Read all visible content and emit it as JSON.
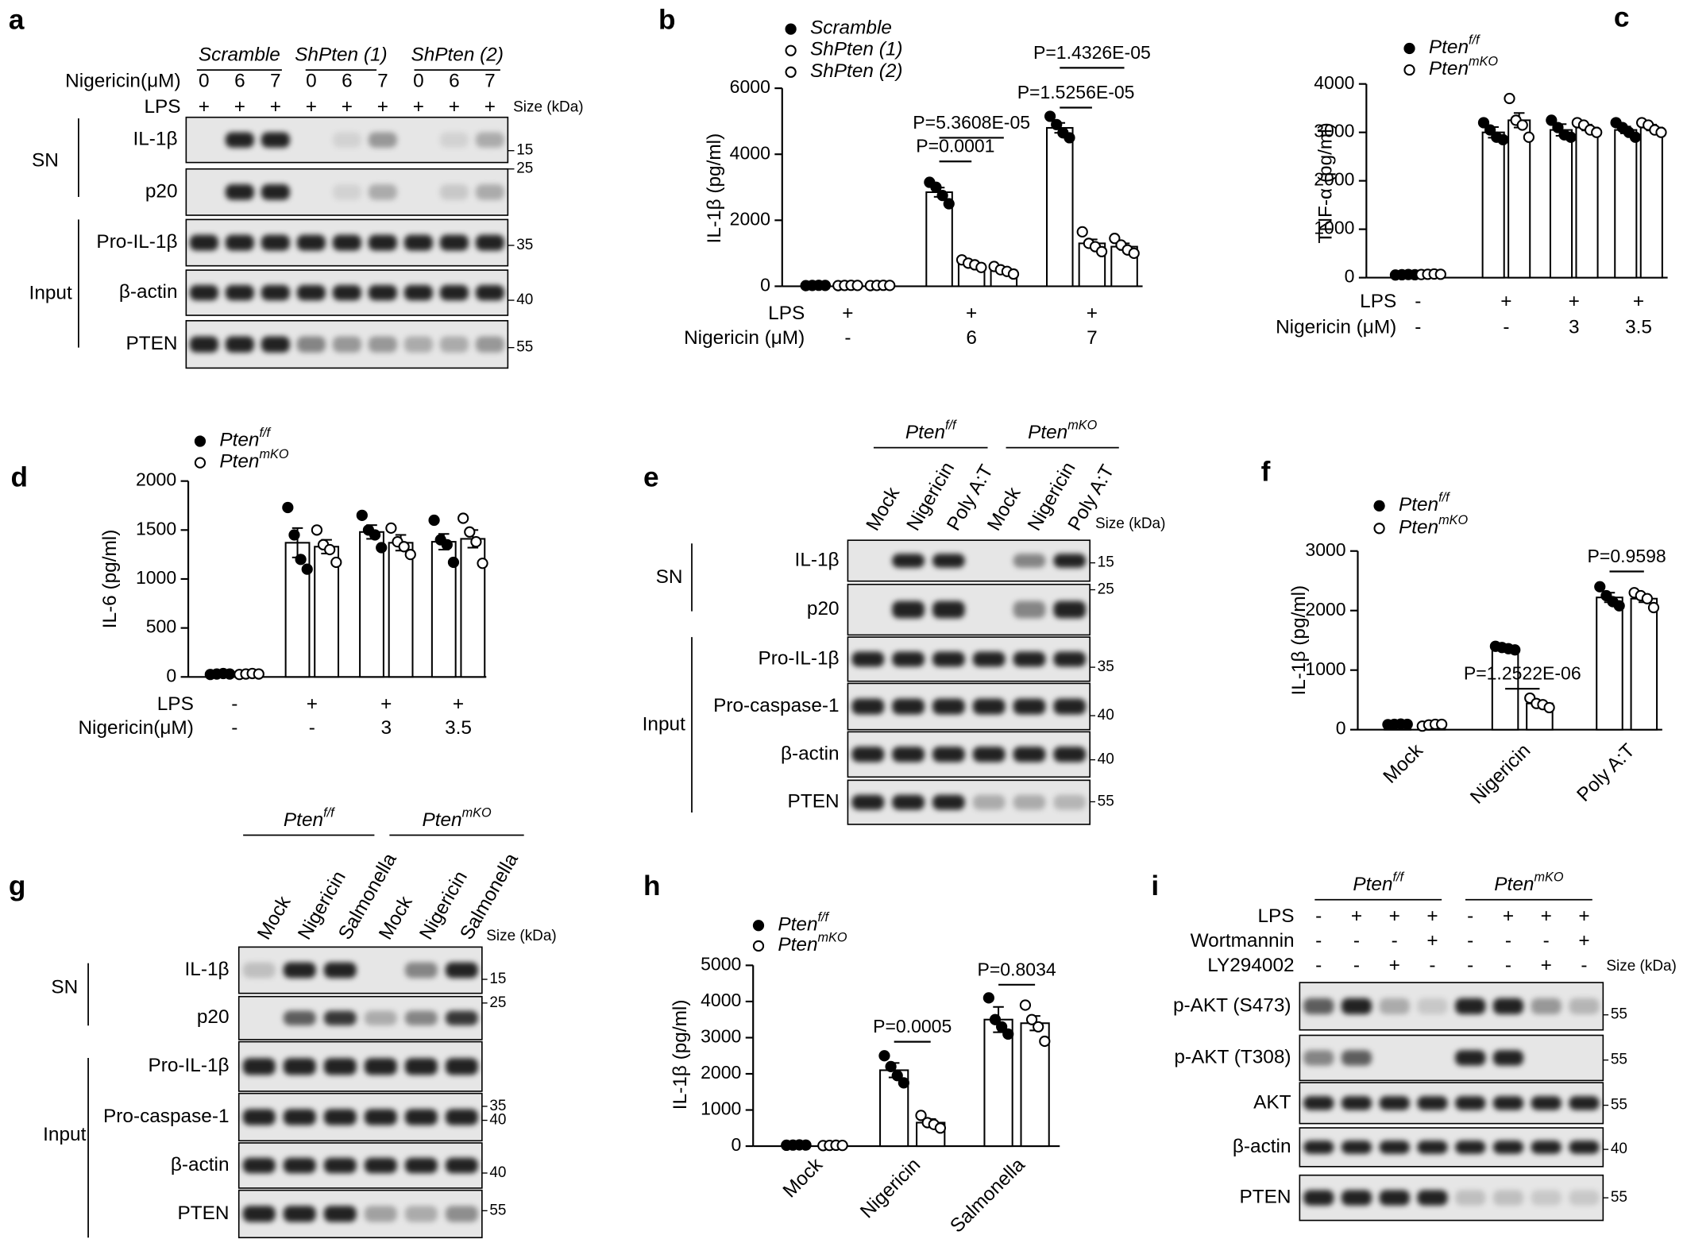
{
  "chart_data": [
    {
      "letter": "b",
      "type": "bar",
      "y_label": "IL-1β (pg/ml)",
      "conditions": [
        {
          "label": "LPS",
          "values": [
            "+",
            "+",
            "+"
          ]
        },
        {
          "label": "Nigericin (μM)",
          "values": [
            "-",
            6,
            7
          ]
        }
      ],
      "ylim": [
        0,
        6000
      ],
      "yticks": [
        0,
        2000,
        4000,
        6000
      ],
      "series": [
        {
          "name": "Scramble",
          "marker": "filled",
          "color": "#000000",
          "values": [
            25,
            2850,
            4800
          ],
          "errors": [
            3,
            140,
            150
          ],
          "points": [
            [
              20,
              25,
              30,
              25
            ],
            [
              3150,
              3000,
              2750,
              2500
            ],
            [
              5150,
              4900,
              4650,
              4500
            ]
          ]
        },
        {
          "name": "ShPten (1)",
          "marker": "open",
          "color": "#000000",
          "values": [
            25,
            680,
            1300
          ],
          "errors": [
            3,
            50,
            120
          ],
          "points": [
            [
              20,
              25,
              30,
              25
            ],
            [
              800,
              700,
              650,
              570
            ],
            [
              1650,
              1300,
              1200,
              1050
            ]
          ]
        },
        {
          "name": "ShPten (2)",
          "marker": "open",
          "color": "#000000",
          "values": [
            25,
            480,
            1200
          ],
          "errors": [
            3,
            50,
            100
          ],
          "points": [
            [
              20,
              25,
              30,
              25
            ],
            [
              600,
              500,
              450,
              370
            ],
            [
              1450,
              1250,
              1100,
              1000
            ]
          ]
        }
      ],
      "annotations": [
        {
          "text": "P=0.0001",
          "category": 1,
          "series": [
            0,
            1
          ]
        },
        {
          "text": "P=5.3608E-05",
          "category": 1,
          "series": [
            0,
            2
          ]
        },
        {
          "text": "P=1.5256E-05",
          "category": 2,
          "series": [
            0,
            1
          ]
        },
        {
          "text": "P=1.4326E-05",
          "category": 2,
          "series": [
            0,
            2
          ]
        }
      ]
    },
    {
      "letter": "c",
      "type": "bar",
      "y_label": "TNF-α (pg/ml)",
      "conditions": [
        {
          "label": "LPS",
          "values": [
            "-",
            "+",
            "+",
            "+"
          ]
        },
        {
          "label": "Nigericin (μM)",
          "values": [
            "-",
            "-",
            3,
            3.5
          ]
        }
      ],
      "ylim": [
        0,
        4000
      ],
      "yticks": [
        0,
        1000,
        2000,
        3000,
        4000
      ],
      "series": [
        {
          "name": "Pten",
          "name_superscript": "f/f",
          "marker": "filled",
          "color": "#000000",
          "values": [
            60,
            3000,
            3050,
            3050
          ],
          "errors": [
            5,
            110,
            120,
            70
          ],
          "points": [
            [
              55,
              60,
              65,
              60
            ],
            [
              3200,
              3050,
              2900,
              2850
            ],
            [
              3250,
              3100,
              2950,
              2900
            ],
            [
              3200,
              3100,
              3000,
              2900
            ]
          ]
        },
        {
          "name": "Pten",
          "name_superscript": "mKO",
          "marker": "open",
          "color": "#000000",
          "values": [
            70,
            3250,
            3100,
            3100
          ],
          "errors": [
            5,
            150,
            60,
            60
          ],
          "points": [
            [
              65,
              70,
              75,
              70
            ],
            [
              3700,
              3250,
              3150,
              2900
            ],
            [
              3200,
              3150,
              3050,
              3000
            ],
            [
              3200,
              3150,
              3050,
              3000
            ]
          ]
        }
      ]
    },
    {
      "letter": "d",
      "type": "bar",
      "y_label": "IL-6 (pg/ml)",
      "conditions": [
        {
          "label": "LPS",
          "values": [
            "-",
            "+",
            "+",
            "+"
          ]
        },
        {
          "label": "Nigericin(μM)",
          "values": [
            "-",
            "-",
            3,
            3.5
          ]
        }
      ],
      "ylim": [
        0,
        2000
      ],
      "yticks": [
        0,
        500,
        1000,
        1500,
        2000
      ],
      "series": [
        {
          "name": "Pten",
          "name_superscript": "f/f",
          "marker": "filled",
          "color": "#000000",
          "values": [
            30,
            1370,
            1480,
            1380
          ],
          "errors": [
            5,
            150,
            70,
            80
          ],
          "points": [
            [
              25,
              30,
              35,
              30
            ],
            [
              1730,
              1450,
              1200,
              1100
            ],
            [
              1650,
              1500,
              1450,
              1320
            ],
            [
              1600,
              1400,
              1350,
              1170
            ]
          ]
        },
        {
          "name": "Pten",
          "name_superscript": "mKO",
          "marker": "open",
          "color": "#000000",
          "values": [
            30,
            1330,
            1370,
            1410
          ],
          "errors": [
            5,
            70,
            80,
            90
          ],
          "points": [
            [
              25,
              30,
              35,
              30
            ],
            [
              1500,
              1350,
              1300,
              1170
            ],
            [
              1520,
              1380,
              1330,
              1250
            ],
            [
              1620,
              1480,
              1380,
              1160
            ]
          ]
        }
      ]
    },
    {
      "letter": "f",
      "type": "bar",
      "y_label": "IL-1β (pg/ml)",
      "categories": [
        "Mock",
        "Nigericin",
        "Poly A:T"
      ],
      "ylim": [
        0,
        3000
      ],
      "yticks": [
        0,
        1000,
        2000,
        3000
      ],
      "series": [
        {
          "name": "Pten",
          "name_superscript": "f/f",
          "marker": "filled",
          "color": "#000000",
          "values": [
            90,
            1370,
            2220
          ],
          "errors": [
            5,
            20,
            80
          ],
          "points": [
            [
              85,
              90,
              95,
              90
            ],
            [
              1400,
              1380,
              1360,
              1340
            ],
            [
              2400,
              2250,
              2150,
              2080
            ]
          ]
        },
        {
          "name": "Pten",
          "name_superscript": "mKO",
          "marker": "open",
          "color": "#000000",
          "values": [
            80,
            440,
            2200
          ],
          "errors": [
            10,
            40,
            60
          ],
          "points": [
            [
              60,
              80,
              90,
              90
            ],
            [
              530,
              440,
              420,
              370
            ],
            [
              2300,
              2250,
              2200,
              2050
            ]
          ]
        }
      ],
      "annotations": [
        {
          "text": "P=1.2522E-06",
          "category": 1,
          "series": [
            0,
            1
          ]
        },
        {
          "text": "P=0.9598",
          "category": 2,
          "series": [
            0,
            1
          ]
        }
      ]
    },
    {
      "letter": "h",
      "type": "bar",
      "y_label": "IL-1β (pg/ml)",
      "categories": [
        "Mock",
        "Nigericin",
        "Salmonella"
      ],
      "ylim": [
        0,
        5000
      ],
      "yticks": [
        0,
        1000,
        2000,
        3000,
        4000,
        5000
      ],
      "series": [
        {
          "name": "Pten",
          "name_superscript": "f/f",
          "marker": "filled",
          "color": "#000000",
          "values": [
            30,
            2100,
            3500
          ],
          "errors": [
            5,
            200,
            350
          ],
          "points": [
            [
              25,
              30,
              35,
              30
            ],
            [
              2500,
              2200,
              1950,
              1750
            ],
            [
              4100,
              3500,
              3300,
              3100
            ]
          ]
        },
        {
          "name": "Pten",
          "name_superscript": "mKO",
          "marker": "open",
          "color": "#000000",
          "values": [
            20,
            650,
            3400
          ],
          "errors": [
            5,
            100,
            200
          ],
          "points": [
            [
              15,
              20,
              25,
              20
            ],
            [
              850,
              650,
              600,
              500
            ],
            [
              3900,
              3500,
              3300,
              2900
            ]
          ]
        }
      ],
      "annotations": [
        {
          "text": "P=0.0005",
          "category": 1,
          "series": [
            0,
            1
          ]
        },
        {
          "text": "P=0.8034",
          "category": 2,
          "series": [
            0,
            1
          ]
        }
      ]
    }
  ],
  "blots": [
    {
      "letter": "a",
      "groups": [
        {
          "name": "Scramble"
        },
        {
          "name": "ShPten (1)"
        },
        {
          "name": "ShPten (2)"
        }
      ],
      "conditions": [
        {
          "label": "Nigericin(μM)",
          "values": [
            0,
            6,
            7,
            0,
            6,
            7,
            0,
            6,
            7
          ]
        },
        {
          "label": "LPS",
          "values": [
            "+",
            "+",
            "+",
            "+",
            "+",
            "+",
            "+",
            "+",
            "+"
          ]
        }
      ],
      "size_label": "Size (kDa)",
      "sections": [
        {
          "label": "SN"
        },
        {
          "label": "Input"
        }
      ],
      "rows": [
        {
          "label": "IL-1β",
          "size": 15
        },
        {
          "label": "p20",
          "size": 25
        },
        {
          "label": "Pro-IL-1β",
          "size": 35
        },
        {
          "label": "β-actin",
          "size": 40
        },
        {
          "label": "PTEN",
          "size": 55
        }
      ]
    },
    {
      "letter": "e",
      "groups": [
        {
          "name": "Pten",
          "superscript": "f/f"
        },
        {
          "name": "Pten",
          "superscript": "mKO"
        }
      ],
      "lane_labels": [
        "Mock",
        "Nigericin",
        "Poly A:T",
        "Mock",
        "Nigericin",
        "Poly A:T"
      ],
      "size_label": "Size (kDa)",
      "sections": [
        {
          "label": "SN"
        },
        {
          "label": "Input"
        }
      ],
      "rows": [
        {
          "label": "IL-1β",
          "size": 15
        },
        {
          "label": "p20",
          "size": 25
        },
        {
          "label": "Pro-IL-1β",
          "size": 35
        },
        {
          "label": "Pro-caspase-1",
          "size": 40
        },
        {
          "label": "β-actin",
          "size": 40
        },
        {
          "label": "PTEN",
          "size": 55
        }
      ]
    },
    {
      "letter": "g",
      "groups": [
        {
          "name": "Pten",
          "superscript": "f/f"
        },
        {
          "name": "Pten",
          "superscript": "mKO"
        }
      ],
      "lane_labels": [
        "Mock",
        "Nigericin",
        "Salmonella",
        "Mock",
        "Nigericin",
        "Salmonella"
      ],
      "size_label": "Size (kDa)",
      "sections": [
        {
          "label": "SN"
        },
        {
          "label": "Input"
        }
      ],
      "rows": [
        {
          "label": "IL-1β",
          "size": 15
        },
        {
          "label": "p20",
          "size": 25
        },
        {
          "label": "Pro-IL-1β",
          "size": 35
        },
        {
          "label": "Pro-caspase-1",
          "size": 40
        },
        {
          "label": "β-actin",
          "size": 40
        },
        {
          "label": "PTEN",
          "size": 55
        }
      ]
    },
    {
      "letter": "i",
      "groups": [
        {
          "name": "Pten",
          "superscript": "f/f"
        },
        {
          "name": "Pten",
          "superscript": "mKO"
        }
      ],
      "conditions": [
        {
          "label": "LPS",
          "values": [
            "-",
            "+",
            "+",
            "+",
            "-",
            "+",
            "+",
            "+"
          ]
        },
        {
          "label": "Wortmannin",
          "values": [
            "-",
            "-",
            "-",
            "+",
            "-",
            "-",
            "-",
            "+"
          ]
        },
        {
          "label": "LY294002",
          "values": [
            "-",
            "-",
            "+",
            "-",
            "-",
            "-",
            "+",
            "-"
          ]
        }
      ],
      "size_label": "Size (kDa)",
      "rows": [
        {
          "label": "p-AKT (S473)",
          "size": 55
        },
        {
          "label": "p-AKT (T308)",
          "size": 55
        },
        {
          "label": "AKT",
          "size": 55
        },
        {
          "label": "β-actin",
          "size": 40
        },
        {
          "label": "PTEN",
          "size": 55
        }
      ]
    }
  ]
}
